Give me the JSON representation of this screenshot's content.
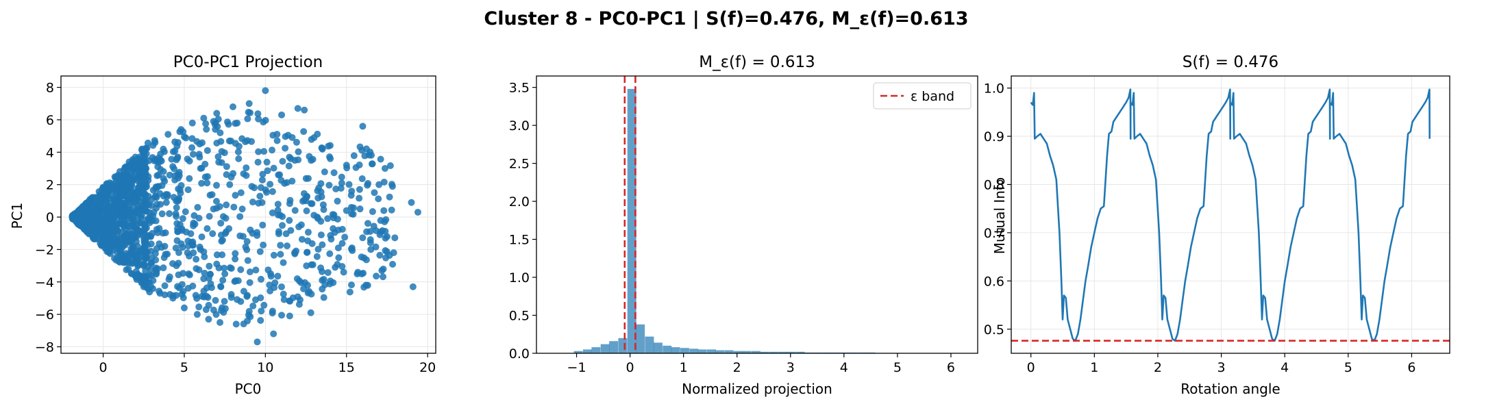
{
  "figure": {
    "suptitle": "Cluster 8 - PC0-PC1 | S(f)=0.476, M_ε(f)=0.613"
  },
  "colors": {
    "series": "#1f77b4",
    "reference": "#d62728",
    "grid": "#e6e6e6"
  },
  "chart_data": [
    {
      "type": "scatter",
      "title": "PC0-PC1 Projection",
      "xlabel": "PC0",
      "ylabel": "PC1",
      "xlim": [
        -2.6,
        20.5
      ],
      "ylim": [
        -8.4,
        8.7
      ],
      "xticks": [
        0,
        5,
        10,
        15,
        20
      ],
      "yticks": [
        -8,
        -6,
        -4,
        -2,
        0,
        2,
        4,
        6,
        8
      ],
      "grid": true,
      "description_points": "dense wedge from x=-2 (y=0) widening to |y|≈4.3 by x≈2.5, then sparse scatter out to x≈19.5",
      "points": [
        [
          -1.9,
          0.0
        ],
        [
          -1.5,
          0.3
        ],
        [
          -1.2,
          -0.6
        ],
        [
          -0.8,
          1.1
        ],
        [
          -0.5,
          -1.3
        ],
        [
          0.0,
          1.8
        ],
        [
          0.3,
          -2.0
        ],
        [
          0.8,
          2.5
        ],
        [
          1.2,
          -2.7
        ],
        [
          1.6,
          3.4
        ],
        [
          2.0,
          -3.6
        ],
        [
          2.4,
          4.2
        ],
        [
          2.5,
          -4.3
        ],
        [
          1.0,
          0.4
        ],
        [
          0.5,
          -0.9
        ],
        [
          3.2,
          4.6
        ],
        [
          3.5,
          -4.7
        ],
        [
          4.0,
          5.1
        ],
        [
          4.3,
          -5.0
        ],
        [
          4.8,
          5.4
        ],
        [
          5.0,
          -5.6
        ],
        [
          5.5,
          5.8
        ],
        [
          5.8,
          -6.0
        ],
        [
          6.2,
          6.1
        ],
        [
          6.5,
          -6.3
        ],
        [
          7.0,
          6.4
        ],
        [
          7.2,
          -6.5
        ],
        [
          8.0,
          6.8
        ],
        [
          8.2,
          -6.6
        ],
        [
          9.0,
          7.0
        ],
        [
          9.5,
          -7.7
        ],
        [
          10.0,
          7.8
        ],
        [
          10.5,
          -7.2
        ],
        [
          11.0,
          6.3
        ],
        [
          11.5,
          -6.1
        ],
        [
          12.0,
          6.7
        ],
        [
          12.4,
          6.6
        ],
        [
          12.8,
          -5.9
        ],
        [
          13.0,
          4.9
        ],
        [
          13.5,
          -3.9
        ],
        [
          14.0,
          3.6
        ],
        [
          14.3,
          -3.1
        ],
        [
          15.0,
          3.2
        ],
        [
          15.3,
          0.6
        ],
        [
          15.7,
          -3.4
        ],
        [
          16.0,
          5.6
        ],
        [
          16.2,
          -4.2
        ],
        [
          16.5,
          -2.0
        ],
        [
          17.0,
          2.0
        ],
        [
          17.3,
          0.4
        ],
        [
          17.5,
          -1.2
        ],
        [
          17.4,
          -1.3
        ],
        [
          19.0,
          0.9
        ],
        [
          19.1,
          -4.3
        ],
        [
          19.4,
          0.3
        ],
        [
          8.5,
          1.5
        ],
        [
          9.2,
          -1.0
        ],
        [
          10.8,
          2.6
        ],
        [
          11.8,
          -2.2
        ],
        [
          12.5,
          1.0
        ],
        [
          13.2,
          0.0
        ],
        [
          14.5,
          -0.8
        ],
        [
          15.0,
          0.4
        ],
        [
          6.0,
          3.0
        ],
        [
          7.5,
          -3.5
        ],
        [
          6.8,
          0.5
        ],
        [
          7.8,
          2.0
        ],
        [
          5.2,
          -2.2
        ],
        [
          4.5,
          1.0
        ],
        [
          3.8,
          -1.8
        ]
      ]
    },
    {
      "type": "bar",
      "title": "M_ε(f) = 0.613",
      "xlabel": "Normalized projection",
      "ylabel": "",
      "xlim": [
        -1.75,
        6.5
      ],
      "ylim": [
        0,
        3.65
      ],
      "xticks": [
        -1,
        0,
        1,
        2,
        3,
        4,
        5,
        6
      ],
      "yticks": [
        0.0,
        0.5,
        1.0,
        1.5,
        2.0,
        2.5,
        3.0,
        3.5
      ],
      "grid": false,
      "bin_width": 0.166,
      "bins": [
        [
          -1.05,
          0.03
        ],
        [
          -0.88,
          0.05
        ],
        [
          -0.72,
          0.08
        ],
        [
          -0.55,
          0.12
        ],
        [
          -0.39,
          0.16
        ],
        [
          -0.22,
          0.2
        ],
        [
          -0.05,
          3.48
        ],
        [
          0.11,
          0.38
        ],
        [
          0.28,
          0.22
        ],
        [
          0.44,
          0.14
        ],
        [
          0.61,
          0.1
        ],
        [
          0.77,
          0.08
        ],
        [
          0.94,
          0.07
        ],
        [
          1.11,
          0.06
        ],
        [
          1.27,
          0.05
        ],
        [
          1.44,
          0.05
        ],
        [
          1.6,
          0.04
        ],
        [
          1.77,
          0.04
        ],
        [
          1.94,
          0.03
        ],
        [
          2.1,
          0.03
        ],
        [
          2.27,
          0.03
        ],
        [
          2.43,
          0.02
        ],
        [
          2.6,
          0.02
        ],
        [
          2.77,
          0.02
        ],
        [
          2.93,
          0.02
        ],
        [
          3.1,
          0.02
        ],
        [
          3.26,
          0.01
        ],
        [
          3.43,
          0.01
        ],
        [
          3.6,
          0.01
        ],
        [
          3.76,
          0.01
        ],
        [
          3.93,
          0.01
        ],
        [
          4.09,
          0.01
        ],
        [
          4.26,
          0.01
        ],
        [
          4.42,
          0.01
        ],
        [
          4.59,
          0.005
        ],
        [
          4.76,
          0.005
        ],
        [
          4.92,
          0.005
        ],
        [
          5.09,
          0.003
        ],
        [
          5.25,
          0.003
        ],
        [
          5.42,
          0.003
        ],
        [
          5.58,
          0.003
        ],
        [
          5.75,
          0.002
        ],
        [
          5.92,
          0.002
        ],
        [
          6.08,
          0.002
        ]
      ],
      "epsilon_lines": [
        -0.1,
        0.1
      ],
      "legend": {
        "label": "ε band",
        "placement": "top-right"
      }
    },
    {
      "type": "line",
      "title": "S(f) = 0.476",
      "xlabel": "Rotation angle",
      "ylabel": "Mutual Info",
      "xlim": [
        -0.31,
        6.6
      ],
      "ylim": [
        0.45,
        1.025
      ],
      "xticks": [
        0,
        1,
        2,
        3,
        4,
        5,
        6
      ],
      "yticks": [
        0.5,
        0.6,
        0.7,
        0.8,
        0.9,
        1.0
      ],
      "grid": true,
      "reference_line": 0.476,
      "period": 1.5708,
      "segment_profile": [
        [
          0.0,
          0.97
        ],
        [
          0.03,
          0.965
        ],
        [
          0.05,
          0.99
        ],
        [
          0.06,
          0.895
        ],
        [
          0.1,
          0.9
        ],
        [
          0.15,
          0.905
        ],
        [
          0.2,
          0.895
        ],
        [
          0.25,
          0.885
        ],
        [
          0.3,
          0.86
        ],
        [
          0.35,
          0.84
        ],
        [
          0.4,
          0.81
        ],
        [
          0.45,
          0.7
        ],
        [
          0.48,
          0.6
        ],
        [
          0.5,
          0.52
        ],
        [
          0.52,
          0.57
        ],
        [
          0.55,
          0.565
        ],
        [
          0.58,
          0.52
        ],
        [
          0.62,
          0.5
        ],
        [
          0.66,
          0.48
        ],
        [
          0.7,
          0.476
        ],
        [
          0.74,
          0.49
        ],
        [
          0.78,
          0.52
        ],
        [
          0.82,
          0.56
        ],
        [
          0.86,
          0.6
        ],
        [
          0.9,
          0.63
        ],
        [
          0.95,
          0.67
        ],
        [
          1.0,
          0.7
        ],
        [
          1.05,
          0.73
        ],
        [
          1.1,
          0.75
        ],
        [
          1.15,
          0.755
        ],
        [
          1.2,
          0.86
        ],
        [
          1.23,
          0.905
        ],
        [
          1.27,
          0.91
        ],
        [
          1.3,
          0.93
        ],
        [
          1.35,
          0.94
        ],
        [
          1.4,
          0.95
        ],
        [
          1.45,
          0.96
        ],
        [
          1.5,
          0.97
        ],
        [
          1.54,
          0.98
        ],
        [
          1.568,
          0.997
        ],
        [
          1.5708,
          0.895
        ]
      ]
    }
  ]
}
